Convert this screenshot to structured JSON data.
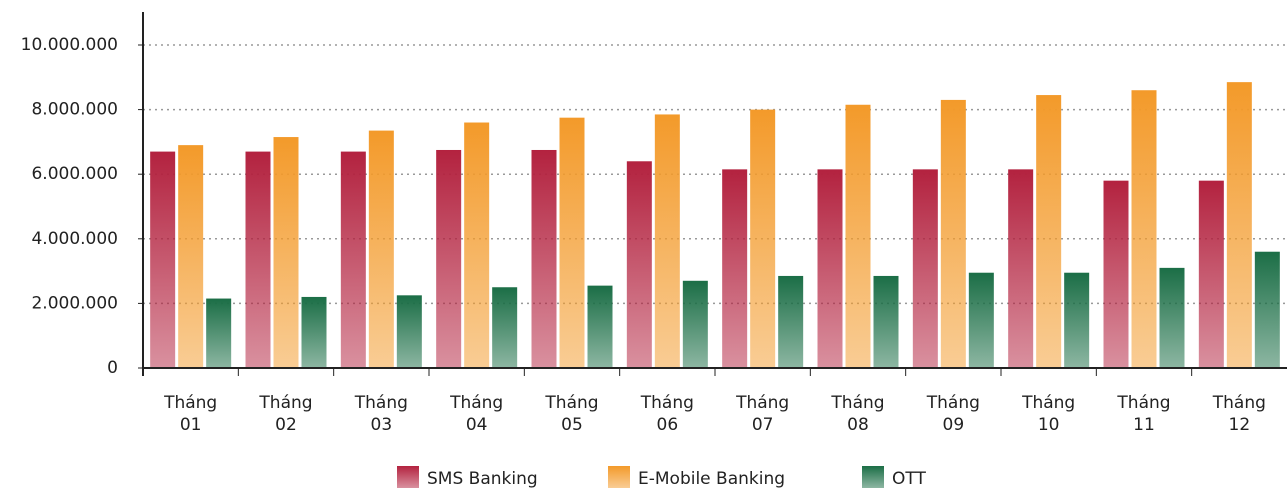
{
  "chart_data": {
    "type": "bar",
    "categories": [
      "Tháng 01",
      "Tháng 02",
      "Tháng 03",
      "Tháng 04",
      "Tháng 05",
      "Tháng 06",
      "Tháng 07",
      "Tháng 08",
      "Tháng 09",
      "Tháng 10",
      "Tháng 11",
      "Tháng 12"
    ],
    "series": [
      {
        "name": "SMS Banking",
        "color": "#b3223f",
        "values": [
          6700000,
          6700000,
          6700000,
          6750000,
          6750000,
          6400000,
          6150000,
          6150000,
          6150000,
          6150000,
          5800000,
          5800000
        ]
      },
      {
        "name": "E-Mobile Banking",
        "color": "#f39a2a",
        "values": [
          6900000,
          7150000,
          7350000,
          7600000,
          7750000,
          7850000,
          8000000,
          8150000,
          8300000,
          8450000,
          8600000,
          8850000
        ]
      },
      {
        "name": "OTT",
        "color": "#1b6e46",
        "values": [
          2150000,
          2200000,
          2250000,
          2500000,
          2550000,
          2700000,
          2850000,
          2850000,
          2950000,
          2950000,
          3100000,
          3600000
        ]
      }
    ],
    "ylim": [
      0,
      10000000
    ],
    "yticks": [
      0,
      {
        "value": 2000000,
        "label": "2.000.000"
      },
      {
        "value": 4000000,
        "label": "4.000.000"
      },
      {
        "value": 6000000,
        "label": "6.000.000"
      },
      {
        "value": 8000000,
        "label": "8.000.000"
      },
      {
        "value": 10000000,
        "label": "10.000.000"
      }
    ],
    "grid": true,
    "legend": "bottom"
  }
}
